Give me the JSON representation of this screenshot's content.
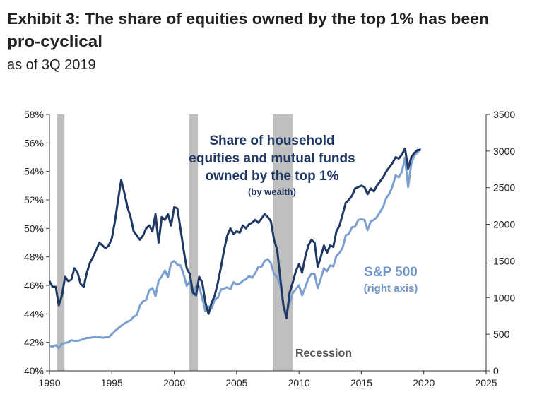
{
  "chart_data": {
    "type": "line",
    "title": [
      "Exhibit 3: The share of equities owned by the top 1% has been",
      "pro-cyclical"
    ],
    "subtitle": "as of 3Q 2019",
    "annotations": {
      "share": [
        "Share of household",
        "equities and mutual funds",
        "owned by the top 1%"
      ],
      "share_note": "(by wealth)",
      "sp": "S&P 500",
      "sp_note": "(right axis)",
      "recession": "Recession"
    },
    "recessions": [
      [
        1990.6,
        1991.2
      ],
      [
        2001.2,
        2001.9
      ],
      [
        2007.9,
        2009.5
      ]
    ],
    "recession_color": "#bfbfbf",
    "x": [
      1990,
      1990.25,
      1990.5,
      1990.75,
      1991,
      1991.25,
      1991.5,
      1991.75,
      1992,
      1992.25,
      1992.5,
      1992.75,
      1993,
      1993.25,
      1993.5,
      1993.75,
      1994,
      1994.25,
      1994.5,
      1994.75,
      1995,
      1995.25,
      1995.5,
      1995.75,
      1996,
      1996.25,
      1996.5,
      1996.75,
      1997,
      1997.25,
      1997.5,
      1997.75,
      1998,
      1998.25,
      1998.5,
      1998.75,
      1999,
      1999.25,
      1999.5,
      1999.75,
      2000,
      2000.25,
      2000.5,
      2000.75,
      2001,
      2001.25,
      2001.5,
      2001.75,
      2002,
      2002.25,
      2002.5,
      2002.75,
      2003,
      2003.25,
      2003.5,
      2003.75,
      2004,
      2004.25,
      2004.5,
      2004.75,
      2005,
      2005.25,
      2005.5,
      2005.75,
      2006,
      2006.25,
      2006.5,
      2006.75,
      2007,
      2007.25,
      2007.5,
      2007.75,
      2008,
      2008.25,
      2008.5,
      2008.75,
      2009,
      2009.25,
      2009.5,
      2009.75,
      2010,
      2010.25,
      2010.5,
      2010.75,
      2011,
      2011.25,
      2011.5,
      2011.75,
      2012,
      2012.25,
      2012.5,
      2012.75,
      2013,
      2013.25,
      2013.5,
      2013.75,
      2014,
      2014.25,
      2014.5,
      2014.75,
      2015,
      2015.25,
      2015.5,
      2015.75,
      2016,
      2016.25,
      2016.5,
      2016.75,
      2017,
      2017.25,
      2017.5,
      2017.75,
      2018,
      2018.25,
      2018.5,
      2018.75,
      2019,
      2019.25,
      2019.5,
      2019.75
    ],
    "series": [
      {
        "name": "Share of household equities and mutual funds owned by the top 1%",
        "color": "#1f3864",
        "values": [
          46.3,
          45.9,
          45.9,
          44.6,
          45.3,
          46.6,
          46.3,
          46.4,
          47.2,
          46.9,
          46.1,
          45.9,
          46.9,
          47.6,
          48.0,
          48.5,
          49.0,
          48.8,
          48.6,
          48.8,
          49.3,
          50.5,
          52.0,
          53.4,
          52.5,
          51.5,
          50.8,
          49.8,
          49.5,
          49.2,
          49.5,
          50.0,
          50.2,
          49.8,
          51.0,
          49.0,
          50.8,
          50.6,
          51.0,
          50.2,
          51.5,
          51.4,
          50.0,
          48.5,
          47.2,
          46.8,
          45.5,
          45.3,
          46.6,
          46.2,
          44.8,
          44.0,
          44.8,
          45.3,
          46.2,
          47.3,
          48.5,
          49.5,
          50.0,
          49.6,
          49.8,
          49.7,
          50.2,
          50.0,
          50.3,
          50.4,
          50.6,
          50.4,
          50.7,
          51.0,
          50.8,
          50.5,
          49.2,
          48.5,
          46.5,
          44.6,
          43.7,
          45.5,
          46.2,
          47.0,
          47.5,
          46.9,
          48.0,
          48.8,
          49.2,
          49.0,
          47.3,
          48.0,
          48.8,
          48.3,
          48.8,
          48.7,
          49.8,
          50.2,
          51.0,
          51.8,
          52.0,
          52.3,
          52.8,
          52.9,
          53.0,
          52.9,
          52.4,
          52.8,
          52.6,
          53.0,
          53.3,
          53.6,
          54.0,
          54.3,
          54.6,
          55.0,
          54.9,
          55.2,
          55.6,
          54.2,
          55.0,
          55.3,
          55.5,
          55.5
        ]
      },
      {
        "name": "S&P 500",
        "color": "#7b9fd0",
        "axis": "y2",
        "values": [
          340,
          330,
          350,
          310,
          370,
          380,
          390,
          417,
          410,
          410,
          420,
          435,
          450,
          450,
          460,
          466,
          460,
          450,
          460,
          460,
          500,
          545,
          580,
          615,
          645,
          670,
          690,
          740,
          760,
          890,
          950,
          970,
          1100,
          1130,
          1020,
          1230,
          1290,
          1370,
          1280,
          1470,
          1500,
          1450,
          1440,
          1320,
          1160,
          1220,
          1040,
          1150,
          1150,
          990,
          815,
          880,
          850,
          975,
          1000,
          1110,
          1125,
          1140,
          1115,
          1210,
          1180,
          1190,
          1230,
          1250,
          1295,
          1270,
          1335,
          1420,
          1420,
          1500,
          1525,
          1470,
          1320,
          1280,
          1165,
          900,
          800,
          920,
          1060,
          1115,
          1170,
          1030,
          1140,
          1258,
          1325,
          1320,
          1130,
          1257,
          1400,
          1360,
          1440,
          1426,
          1570,
          1610,
          1680,
          1850,
          1870,
          1960,
          1970,
          2060,
          2070,
          2060,
          1920,
          2040,
          2060,
          2100,
          2170,
          2240,
          2360,
          2420,
          2520,
          2670,
          2640,
          2720,
          2910,
          2510,
          2830,
          2940,
          2980,
          3040
        ]
      }
    ],
    "xlim": [
      1990,
      2025
    ],
    "xticks": [
      1990,
      1995,
      2000,
      2005,
      2010,
      2015,
      2020,
      2025
    ],
    "ylim": [
      40,
      58
    ],
    "yticks": [
      {
        "value": 40,
        "label": "40%"
      },
      {
        "value": 42,
        "label": "42%"
      },
      {
        "value": 44,
        "label": "44%"
      },
      {
        "value": 46,
        "label": "46%"
      },
      {
        "value": 48,
        "label": "48%"
      },
      {
        "value": 50,
        "label": "50%"
      },
      {
        "value": 52,
        "label": "52%"
      },
      {
        "value": 54,
        "label": "54%"
      },
      {
        "value": 56,
        "label": "56%"
      },
      {
        "value": 58,
        "label": "58%"
      }
    ],
    "y2lim": [
      0,
      3500
    ],
    "y2ticks": [
      0,
      500,
      1000,
      1500,
      2000,
      2500,
      3000,
      3500
    ]
  }
}
